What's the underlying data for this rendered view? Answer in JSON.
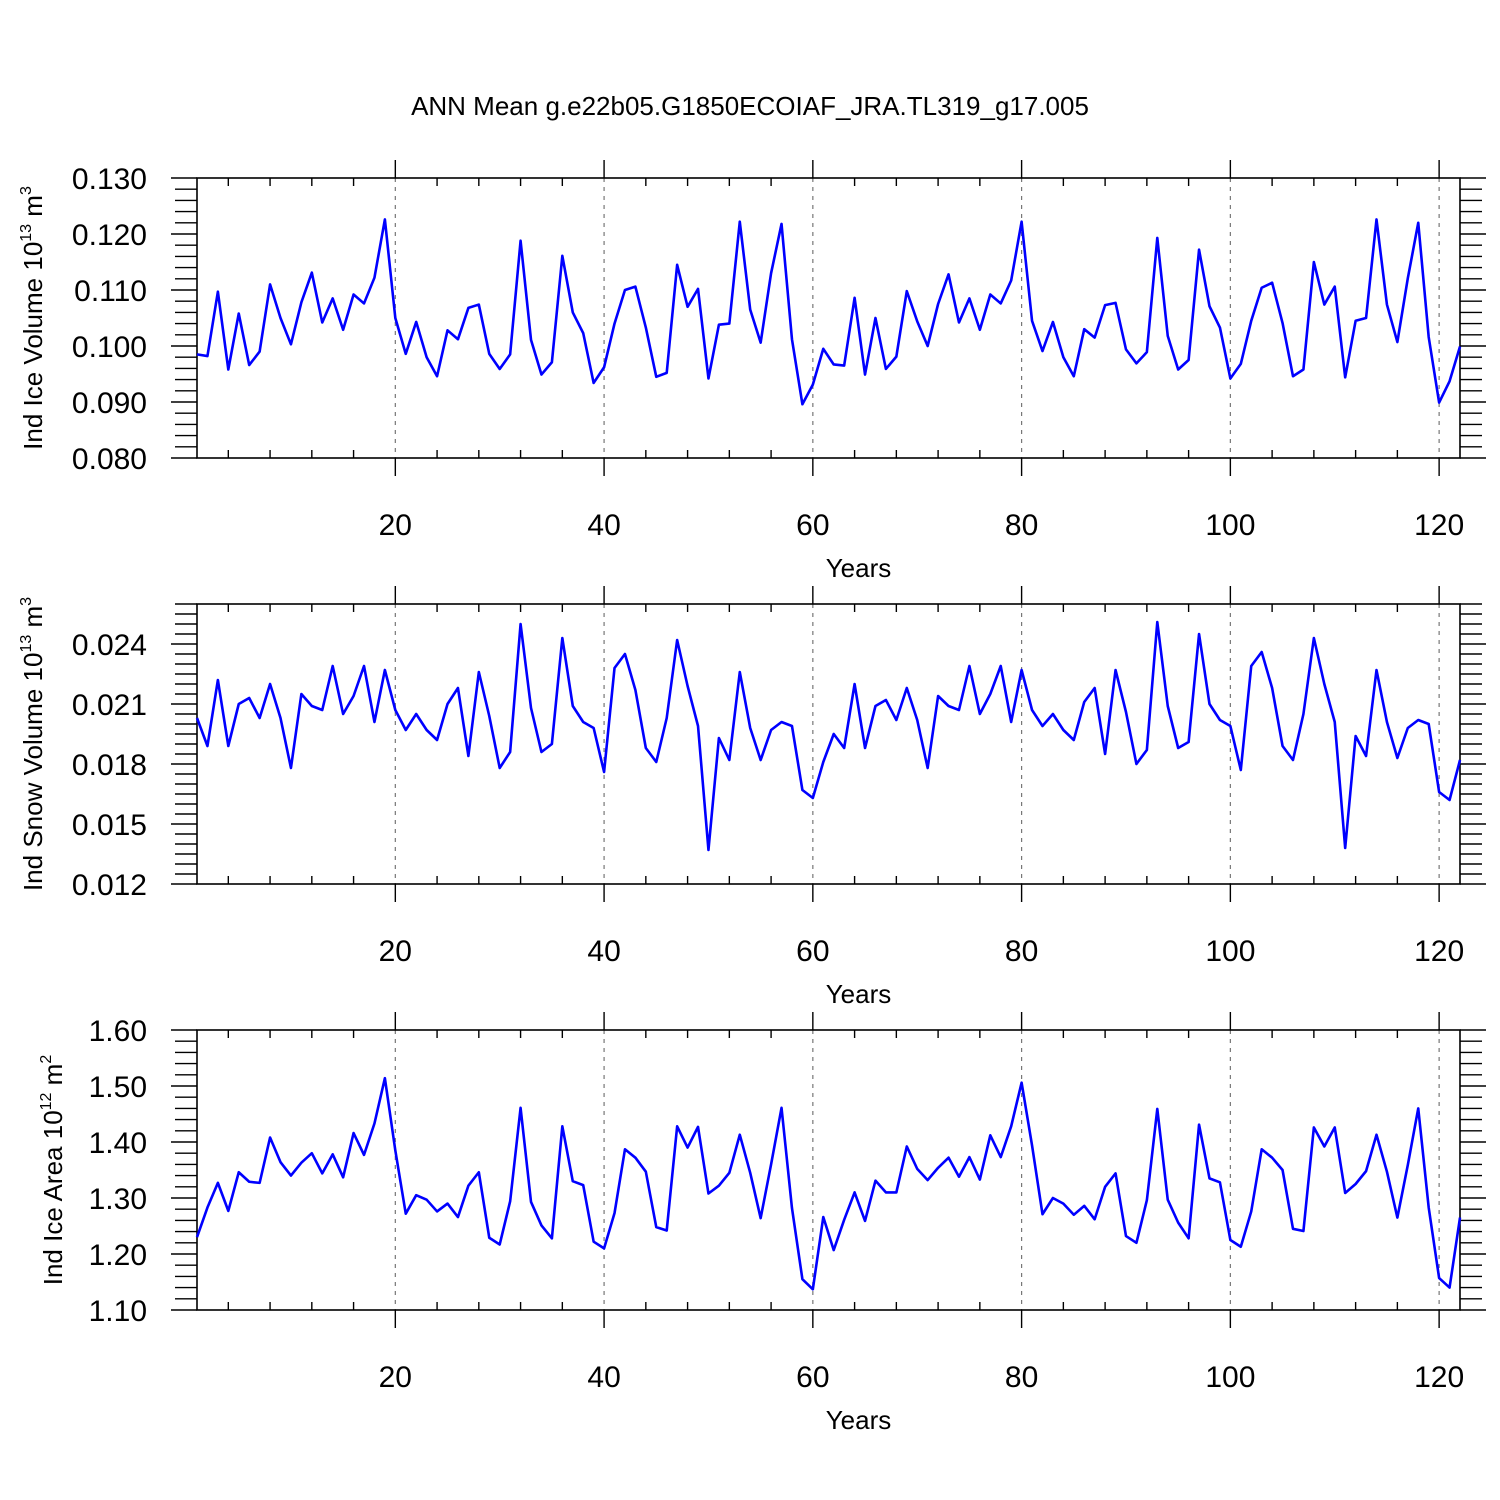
{
  "figure_title": "ANN Mean g.e22b05.G1850ECOIAF_JRA.TL319_g17.005",
  "colors": {
    "line": "#0000ff",
    "frame": "#000000",
    "grid": "#777777"
  },
  "chart_data": [
    {
      "type": "line",
      "title": "ANN Mean g.e22b05.G1850ECOIAF_JRA.TL319_g17.005",
      "ylabel_main": "Ind Ice Volume 10",
      "ylabel_sup": "13",
      "ylabel_unit": " m",
      "ylabel_unit_sup": "3",
      "xlabel": "Years",
      "xlim": [
        1,
        122
      ],
      "ylim": [
        0.08,
        0.13
      ],
      "xticks": [
        20,
        40,
        60,
        80,
        100,
        120
      ],
      "xtick_labels": [
        "20",
        "40",
        "60",
        "80",
        "100",
        "120"
      ],
      "yticks": [
        0.08,
        0.09,
        0.1,
        0.11,
        0.12,
        0.13
      ],
      "ytick_labels": [
        "0.080",
        "0.090",
        "0.100",
        "0.110",
        "0.120",
        "0.130"
      ],
      "x_minor_step": 4,
      "y_minor_step": 0.002,
      "grid": "vertical-dashed",
      "series": [
        {
          "name": "Ind Ice Volume",
          "values": [
            0.0985,
            0.0982,
            0.1097,
            0.0958,
            0.1058,
            0.0966,
            0.099,
            0.111,
            0.105,
            0.1003,
            0.1078,
            0.1131,
            0.1042,
            0.1085,
            0.1029,
            0.1092,
            0.1076,
            0.1122,
            0.1226,
            0.105,
            0.0986,
            0.1043,
            0.098,
            0.0946,
            0.1028,
            0.1012,
            0.1068,
            0.1074,
            0.0986,
            0.0959,
            0.0985,
            0.1188,
            0.1011,
            0.0949,
            0.0971,
            0.1161,
            0.106,
            0.1023,
            0.0934,
            0.0962,
            0.104,
            0.11,
            0.1106,
            0.1033,
            0.0945,
            0.0952,
            0.1145,
            0.107,
            0.1102,
            0.0942,
            0.1038,
            0.104,
            0.1222,
            0.1065,
            0.1006,
            0.113,
            0.1218,
            0.1012,
            0.0896,
            0.0931,
            0.0995,
            0.0967,
            0.0965,
            0.1086,
            0.0949,
            0.105,
            0.0959,
            0.0981,
            0.1098,
            0.1044,
            0.1,
            0.1075,
            0.1128,
            0.1042,
            0.1085,
            0.1029,
            0.1092,
            0.1076,
            0.1117,
            0.1222,
            0.1045,
            0.0991,
            0.1043,
            0.098,
            0.0946,
            0.103,
            0.1015,
            0.1073,
            0.1077,
            0.0994,
            0.0969,
            0.0989,
            0.1193,
            0.1018,
            0.0958,
            0.0975,
            0.1172,
            0.1071,
            0.1033,
            0.0942,
            0.0968,
            0.1045,
            0.1104,
            0.1113,
            0.1041,
            0.0946,
            0.0958,
            0.115,
            0.1074,
            0.1106,
            0.0944,
            0.1045,
            0.105,
            0.1226,
            0.1074,
            0.1007,
            0.1121,
            0.122,
            0.1016,
            0.0899,
            0.0937,
            0.0999
          ]
        }
      ]
    },
    {
      "type": "line",
      "ylabel_main": "Ind Snow Volume 10",
      "ylabel_sup": "13",
      "ylabel_unit": " m",
      "ylabel_unit_sup": "3",
      "xlabel": "Years",
      "xlim": [
        1,
        122
      ],
      "ylim": [
        0.012,
        0.026
      ],
      "xticks": [
        20,
        40,
        60,
        80,
        100,
        120
      ],
      "xtick_labels": [
        "20",
        "40",
        "60",
        "80",
        "100",
        "120"
      ],
      "yticks": [
        0.012,
        0.015,
        0.018,
        0.021,
        0.024
      ],
      "ytick_labels": [
        "0.012",
        "0.015",
        "0.018",
        "0.021",
        "0.024"
      ],
      "x_minor_step": 4,
      "y_minor_step": 0.0005,
      "grid": "vertical-dashed",
      "series": [
        {
          "name": "Ind Snow Volume",
          "values": [
            0.0203,
            0.0189,
            0.0222,
            0.0189,
            0.021,
            0.0213,
            0.0203,
            0.022,
            0.0203,
            0.0178,
            0.0215,
            0.0209,
            0.0207,
            0.0229,
            0.0205,
            0.0214,
            0.0229,
            0.0201,
            0.0227,
            0.0207,
            0.0197,
            0.0205,
            0.0197,
            0.0192,
            0.021,
            0.0218,
            0.0184,
            0.0226,
            0.0204,
            0.0178,
            0.0186,
            0.025,
            0.0208,
            0.0186,
            0.019,
            0.0243,
            0.0209,
            0.0201,
            0.0198,
            0.0176,
            0.0228,
            0.0235,
            0.0217,
            0.0188,
            0.0181,
            0.0203,
            0.0242,
            0.0219,
            0.0199,
            0.0137,
            0.0193,
            0.0182,
            0.0226,
            0.0198,
            0.0182,
            0.0197,
            0.0201,
            0.0199,
            0.0167,
            0.0163,
            0.0181,
            0.0195,
            0.0188,
            0.022,
            0.0188,
            0.0209,
            0.0212,
            0.0202,
            0.0218,
            0.0202,
            0.0178,
            0.0214,
            0.0209,
            0.0207,
            0.0229,
            0.0205,
            0.0215,
            0.0229,
            0.0201,
            0.0227,
            0.0207,
            0.0199,
            0.0205,
            0.0197,
            0.0192,
            0.0211,
            0.0218,
            0.0185,
            0.0227,
            0.0206,
            0.018,
            0.0187,
            0.0251,
            0.0209,
            0.0188,
            0.0191,
            0.0245,
            0.021,
            0.0202,
            0.0199,
            0.0177,
            0.0229,
            0.0236,
            0.0218,
            0.0189,
            0.0182,
            0.0205,
            0.0243,
            0.022,
            0.0201,
            0.0138,
            0.0194,
            0.0184,
            0.0227,
            0.0201,
            0.0183,
            0.0198,
            0.0202,
            0.02,
            0.0166,
            0.0162,
            0.0182
          ]
        }
      ]
    },
    {
      "type": "line",
      "ylabel_main": "Ind Ice Area 10",
      "ylabel_sup": "12",
      "ylabel_unit": " m",
      "ylabel_unit_sup": "2",
      "xlabel": "Years",
      "xlim": [
        1,
        122
      ],
      "ylim": [
        1.1,
        1.6
      ],
      "xticks": [
        20,
        40,
        60,
        80,
        100,
        120
      ],
      "xtick_labels": [
        "20",
        "40",
        "60",
        "80",
        "100",
        "120"
      ],
      "yticks": [
        1.1,
        1.2,
        1.3,
        1.4,
        1.5,
        1.6
      ],
      "ytick_labels": [
        "1.10",
        "1.20",
        "1.30",
        "1.40",
        "1.50",
        "1.60"
      ],
      "x_minor_step": 4,
      "y_minor_step": 0.02,
      "grid": "vertical-dashed",
      "series": [
        {
          "name": "Ind Ice Area",
          "values": [
            1.23,
            1.283,
            1.327,
            1.277,
            1.346,
            1.329,
            1.327,
            1.408,
            1.364,
            1.34,
            1.363,
            1.38,
            1.344,
            1.378,
            1.337,
            1.416,
            1.377,
            1.433,
            1.514,
            1.385,
            1.272,
            1.305,
            1.297,
            1.276,
            1.29,
            1.266,
            1.322,
            1.346,
            1.229,
            1.217,
            1.294,
            1.461,
            1.293,
            1.251,
            1.228,
            1.428,
            1.33,
            1.323,
            1.222,
            1.21,
            1.273,
            1.387,
            1.372,
            1.347,
            1.248,
            1.242,
            1.428,
            1.39,
            1.427,
            1.308,
            1.322,
            1.345,
            1.413,
            1.345,
            1.264,
            1.36,
            1.461,
            1.282,
            1.155,
            1.137,
            1.266,
            1.207,
            1.261,
            1.31,
            1.259,
            1.331,
            1.31,
            1.31,
            1.392,
            1.352,
            1.332,
            1.354,
            1.372,
            1.338,
            1.373,
            1.333,
            1.412,
            1.373,
            1.428,
            1.506,
            1.394,
            1.271,
            1.3,
            1.29,
            1.27,
            1.286,
            1.262,
            1.32,
            1.344,
            1.232,
            1.22,
            1.296,
            1.459,
            1.297,
            1.256,
            1.228,
            1.431,
            1.335,
            1.328,
            1.225,
            1.213,
            1.276,
            1.387,
            1.372,
            1.35,
            1.245,
            1.241,
            1.426,
            1.392,
            1.426,
            1.309,
            1.325,
            1.348,
            1.413,
            1.347,
            1.265,
            1.359,
            1.46,
            1.283,
            1.157,
            1.14,
            1.265
          ]
        }
      ]
    }
  ]
}
